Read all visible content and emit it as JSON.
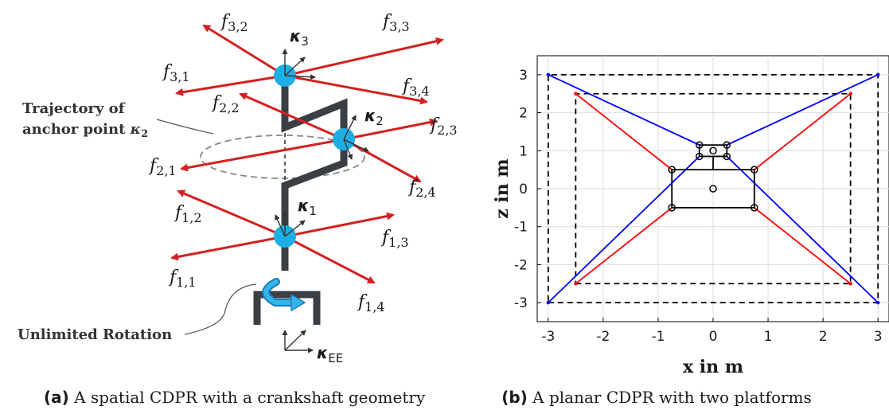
{
  "panel_a": {
    "forces": {
      "f31": {
        "name": "f",
        "sub": "3,1"
      },
      "f32": {
        "name": "f",
        "sub": "3,2"
      },
      "f33": {
        "name": "f",
        "sub": "3,3"
      },
      "f34": {
        "name": "f",
        "sub": "3,4"
      },
      "f21": {
        "name": "f",
        "sub": "2,1"
      },
      "f22": {
        "name": "f",
        "sub": "2,2"
      },
      "f23": {
        "name": "f",
        "sub": "2,3"
      },
      "f24": {
        "name": "f",
        "sub": "2,4"
      },
      "f11": {
        "name": "f",
        "sub": "1,1"
      },
      "f12": {
        "name": "f",
        "sub": "1,2"
      },
      "f13": {
        "name": "f",
        "sub": "1,3"
      },
      "f14": {
        "name": "f",
        "sub": "1,4"
      }
    },
    "frames": {
      "k3": {
        "name": "κ",
        "sub": "3"
      },
      "k2": {
        "name": "κ",
        "sub": "2"
      },
      "k1": {
        "name": "κ",
        "sub": "1"
      },
      "kee": {
        "name": "κ",
        "sub": "EE"
      }
    },
    "annotations": {
      "trajectory_line1": "Trajectory of",
      "trajectory_line2": "anchor point ",
      "trajectory_k": "κ",
      "trajectory_sub": "2",
      "rotation": "Unlimited Rotation"
    },
    "caption": {
      "tag": "(a)",
      "text": " A spatial CDPR with a crankshaft geometry"
    },
    "colors": {
      "cable": "#d42020",
      "anchor": "#1eaee6",
      "shaft": "#3a3f44"
    }
  },
  "panel_b": {
    "chart_data": {
      "type": "line",
      "xlabel": "x in m",
      "ylabel": "z in m",
      "xlim": [
        -3.2,
        3.2
      ],
      "ylim": [
        -3.5,
        3.5
      ],
      "xticks": [
        -3,
        -2,
        -1,
        0,
        1,
        2,
        3
      ],
      "yticks": [
        -3,
        -2,
        -1,
        0,
        1,
        2,
        3
      ],
      "grid": true,
      "frames": [
        {
          "name": "outer frame",
          "style": "dashed",
          "color": "#000000",
          "corners": [
            [
              -3,
              -3
            ],
            [
              3,
              -3
            ],
            [
              3,
              3
            ],
            [
              -3,
              3
            ]
          ]
        },
        {
          "name": "inner frame",
          "style": "dashed",
          "color": "#000000",
          "corners": [
            [
              -2.5,
              -2.5
            ],
            [
              2.5,
              -2.5
            ],
            [
              2.5,
              2.5
            ],
            [
              -2.5,
              2.5
            ]
          ]
        }
      ],
      "platforms": [
        {
          "name": "lower platform",
          "color": "#000000",
          "corners": [
            [
              -0.75,
              -0.5
            ],
            [
              0.75,
              -0.5
            ],
            [
              0.75,
              0.5
            ],
            [
              -0.75,
              0.5
            ]
          ],
          "center": [
            0,
            0
          ]
        },
        {
          "name": "upper platform",
          "color": "#000000",
          "corners": [
            [
              -0.25,
              0.85
            ],
            [
              0.25,
              0.85
            ],
            [
              0.25,
              1.15
            ],
            [
              -0.25,
              1.15
            ]
          ],
          "center": [
            0,
            1.0
          ]
        }
      ],
      "connector": [
        [
          0,
          0.5
        ],
        [
          0,
          0.85
        ]
      ],
      "series": [
        {
          "color": "#0000ff",
          "segments": [
            [
              [
                -3,
                3
              ],
              [
                -0.25,
                1.15
              ]
            ],
            [
              [
                3,
                3
              ],
              [
                0.25,
                1.15
              ]
            ],
            [
              [
                -3,
                -3
              ],
              [
                -0.25,
                0.85
              ]
            ],
            [
              [
                3,
                -3
              ],
              [
                0.25,
                0.85
              ]
            ]
          ]
        },
        {
          "color": "#ff0000",
          "segments": [
            [
              [
                -2.5,
                2.5
              ],
              [
                -0.75,
                0.5
              ]
            ],
            [
              [
                2.5,
                2.5
              ],
              [
                0.75,
                0.5
              ]
            ],
            [
              [
                -2.5,
                -2.5
              ],
              [
                -0.75,
                -0.5
              ]
            ],
            [
              [
                2.5,
                -2.5
              ],
              [
                0.75,
                -0.5
              ]
            ]
          ]
        }
      ]
    },
    "caption": {
      "tag": "(b)",
      "text": " A planar CDPR with two platforms"
    }
  }
}
